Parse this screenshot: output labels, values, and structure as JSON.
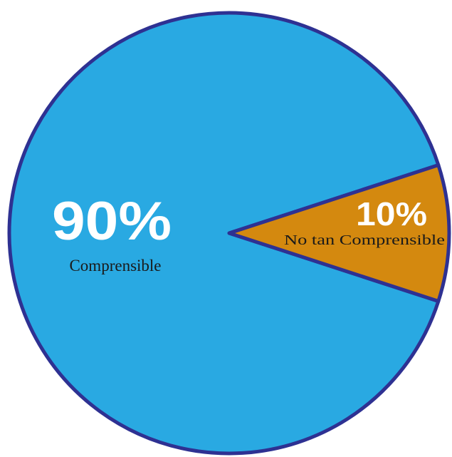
{
  "chart_data": {
    "type": "pie",
    "title": "",
    "slices": [
      {
        "label": "Comprensible",
        "value": 90,
        "display": "90%",
        "color": "#29a9e2"
      },
      {
        "label": "No tan Comprensible",
        "value": 10,
        "display": "10%",
        "color": "#d4890f"
      }
    ],
    "outline_color": "#2e3192",
    "legend": "none"
  }
}
